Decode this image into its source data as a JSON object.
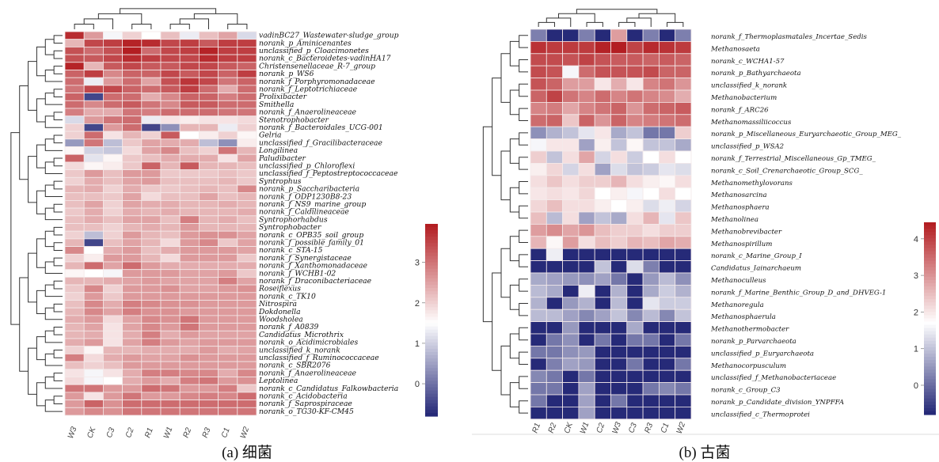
{
  "chart_data": [
    {
      "type": "heatmap",
      "title": "",
      "caption": "(a) 细菌",
      "columns": [
        "W3",
        "CK",
        "C3",
        "C2",
        "R1",
        "W1",
        "R2",
        "R3",
        "C1",
        "W2"
      ],
      "rows": [
        "vadinBC27_Wastewater-sludge_group",
        "norank_p_Aminicenantes",
        "unclassified_p_Cloacimonetes",
        "norank_c_Bacteroidetes-vadinHA17",
        "Christensenellaceae_R-7_group",
        "norank_p_WS6",
        "norank_f_Porphyromonadaceae",
        "norank_f_Leptotrichiaceae",
        "Prolixibacter",
        "Smithella",
        "norank_f_Anaerolineaceae",
        "Stenotrophobacter",
        "norank_f_Bacteroidales_UCG-001",
        "Gelria",
        "unclassified_f_Gracilibacteraceae",
        "Longilinea",
        "Paludibacter",
        "unclassified_p_Chloroflexi",
        "unclassified_f_Peptostreptococcaceae",
        "Syntrophus",
        "norank_p_Saccharibacteria",
        "norank_f_ODP1230B8-23",
        "norank_f_NS9_marine_group",
        "norank_f_Caldilineaceae",
        "Syntrophorhabdus",
        "Syntrophobacter",
        "norank_c_OPB35_soil_group",
        "norank_f_possible_family_01",
        "norank_c_STA-15",
        "norank_f_Synergistaceae",
        "norank_f_Xanthomonadaceae",
        "norank_f_WCHB1-02",
        "norank_f_Draconibacteriaceae",
        "Roseiflexus",
        "norank_c_TK10",
        "Nitrospira",
        "Dokdonella",
        "Woodsholea",
        "norank_f_A0839",
        "Candidatus_Microthrix",
        "norank_o_Acidimicrobiales",
        "unclassified_k_norank",
        "unclassified_f_Ruminococcaceae",
        "norank_c_SBR2076",
        "norank_f_Anaerolineaceae",
        "Leptolinea",
        "norank_c_Candidatus_Falkowbacteria",
        "norank_c_Acidobacteria",
        "norank_f_Saprospiraceae",
        "norank_o_TG30-KF-CM45"
      ],
      "values": [
        [
          3.8,
          2.6,
          1.4,
          2.0,
          1.5,
          2.2,
          1.3,
          2.2,
          2.5,
          1.1
        ],
        [
          2.3,
          3.5,
          3.6,
          3.9,
          3.8,
          3.5,
          3.6,
          3.3,
          3.6,
          3.6
        ],
        [
          3.4,
          3.1,
          3.4,
          4.0,
          3.1,
          3.5,
          3.6,
          3.9,
          3.6,
          3.6
        ],
        [
          3.4,
          3.3,
          3.5,
          3.8,
          3.6,
          3.5,
          3.5,
          3.8,
          3.6,
          3.6
        ],
        [
          3.9,
          2.3,
          3.3,
          3.5,
          3.3,
          3.3,
          3.5,
          3.5,
          3.3,
          3.2
        ],
        [
          3.2,
          3.6,
          2.8,
          3.2,
          3.2,
          3.5,
          3.3,
          3.5,
          3.2,
          3.6
        ],
        [
          3.1,
          1.3,
          2.6,
          3.1,
          2.5,
          3.4,
          3.7,
          3.5,
          3.0,
          3.2
        ],
        [
          3.0,
          3.5,
          3.5,
          3.2,
          3.1,
          3.3,
          3.6,
          3.1,
          2.4,
          3.1
        ],
        [
          3.2,
          -0.5,
          3.1,
          3.1,
          2.4,
          2.8,
          3.2,
          3.2,
          2.9,
          3.1
        ],
        [
          3.1,
          2.8,
          3.1,
          3.3,
          3.0,
          2.8,
          3.3,
          3.3,
          3.1,
          3.1
        ],
        [
          2.9,
          2.4,
          2.4,
          3.0,
          2.9,
          3.1,
          3.1,
          3.1,
          3.0,
          3.0
        ],
        [
          1.1,
          2.6,
          3.0,
          3.1,
          1.3,
          1.8,
          1.7,
          1.8,
          1.8,
          1.9
        ],
        [
          2.0,
          -0.5,
          2.6,
          3.1,
          -0.5,
          0.3,
          2.3,
          2.3,
          1.3,
          2.0
        ],
        [
          2.0,
          3.1,
          1.8,
          2.3,
          2.0,
          3.3,
          1.5,
          1.7,
          2.0,
          1.6
        ],
        [
          0.4,
          3.0,
          0.8,
          2.1,
          2.5,
          2.4,
          2.4,
          0.8,
          0.3,
          1.7
        ],
        [
          1.6,
          1.0,
          0.9,
          1.9,
          2.5,
          2.8,
          2.2,
          2.0,
          3.0,
          2.3
        ],
        [
          3.2,
          1.2,
          1.6,
          2.1,
          2.2,
          2.4,
          2.4,
          2.4,
          1.8,
          2.5
        ],
        [
          1.9,
          1.6,
          1.7,
          2.1,
          3.2,
          2.3,
          3.3,
          2.3,
          2.3,
          2.2
        ],
        [
          2.1,
          2.6,
          2.2,
          2.6,
          2.6,
          2.1,
          2.1,
          2.1,
          2.2,
          2.1
        ],
        [
          2.0,
          2.4,
          2.2,
          2.5,
          2.6,
          2.2,
          2.2,
          2.2,
          2.3,
          2.1
        ],
        [
          2.3,
          2.4,
          2.0,
          2.4,
          2.1,
          2.1,
          2.2,
          2.3,
          2.2,
          2.8
        ],
        [
          2.2,
          2.2,
          2.1,
          2.5,
          1.9,
          2.2,
          2.2,
          2.5,
          2.2,
          2.3
        ],
        [
          2.2,
          2.5,
          2.0,
          2.5,
          2.4,
          2.4,
          2.3,
          2.3,
          2.4,
          2.3
        ],
        [
          2.1,
          2.4,
          2.0,
          2.4,
          2.3,
          2.4,
          2.3,
          2.3,
          2.3,
          2.4
        ],
        [
          2.2,
          2.4,
          2.2,
          2.5,
          2.5,
          2.2,
          2.9,
          2.3,
          2.4,
          2.2
        ],
        [
          2.2,
          2.2,
          2.0,
          2.3,
          2.4,
          2.3,
          2.6,
          2.3,
          2.3,
          2.3
        ],
        [
          2.0,
          0.8,
          2.0,
          2.6,
          2.3,
          2.2,
          2.6,
          2.7,
          2.7,
          2.5
        ],
        [
          2.3,
          -0.5,
          2.2,
          2.5,
          2.3,
          1.9,
          2.6,
          2.8,
          2.1,
          2.5
        ],
        [
          2.8,
          1.5,
          2.4,
          2.6,
          2.2,
          2.4,
          2.6,
          2.6,
          2.6,
          2.5
        ],
        [
          2.0,
          1.7,
          2.6,
          2.6,
          2.3,
          1.9,
          2.6,
          2.6,
          2.6,
          2.1
        ],
        [
          2.3,
          3.1,
          2.5,
          3.1,
          2.6,
          2.4,
          2.4,
          2.4,
          2.4,
          2.4
        ],
        [
          1.6,
          1.5,
          1.4,
          2.6,
          2.6,
          2.6,
          2.5,
          2.5,
          2.6,
          2.1
        ],
        [
          2.3,
          2.3,
          2.4,
          2.5,
          2.6,
          2.5,
          2.5,
          2.5,
          2.9,
          2.5
        ],
        [
          2.1,
          2.8,
          2.0,
          2.6,
          2.6,
          2.7,
          2.5,
          2.5,
          2.6,
          2.7
        ],
        [
          2.0,
          2.6,
          2.1,
          2.6,
          2.6,
          2.6,
          2.6,
          2.6,
          2.6,
          2.6
        ],
        [
          2.2,
          2.8,
          2.4,
          2.9,
          2.8,
          2.7,
          2.7,
          2.6,
          2.6,
          2.6
        ],
        [
          2.3,
          2.8,
          2.5,
          2.9,
          2.7,
          2.7,
          2.6,
          2.6,
          2.6,
          2.6
        ],
        [
          2.4,
          2.6,
          1.9,
          2.5,
          2.8,
          2.7,
          3.0,
          2.6,
          2.6,
          2.6
        ],
        [
          2.3,
          2.5,
          1.8,
          2.5,
          2.8,
          2.6,
          3.0,
          2.6,
          2.6,
          2.6
        ],
        [
          2.3,
          2.4,
          1.8,
          2.4,
          2.9,
          2.4,
          2.6,
          2.5,
          2.5,
          2.5
        ],
        [
          2.4,
          2.6,
          1.8,
          2.5,
          2.9,
          2.6,
          2.5,
          2.6,
          2.6,
          2.6
        ],
        [
          2.0,
          1.6,
          2.3,
          2.3,
          2.4,
          2.4,
          2.4,
          2.6,
          2.4,
          2.5
        ],
        [
          2.9,
          1.9,
          2.4,
          2.6,
          2.5,
          2.5,
          2.7,
          2.6,
          2.6,
          2.6
        ],
        [
          2.2,
          2.0,
          2.2,
          2.6,
          2.6,
          2.6,
          2.6,
          2.6,
          2.6,
          2.6
        ],
        [
          1.8,
          1.4,
          1.8,
          2.4,
          2.9,
          2.9,
          2.8,
          2.8,
          2.4,
          2.8
        ],
        [
          1.9,
          1.4,
          1.5,
          2.4,
          2.6,
          2.4,
          2.9,
          3.0,
          2.6,
          2.7
        ],
        [
          3.0,
          3.0,
          2.6,
          2.6,
          3.1,
          3.0,
          2.6,
          2.6,
          2.9,
          2.1
        ],
        [
          2.6,
          1.8,
          2.6,
          3.0,
          2.6,
          2.6,
          2.8,
          2.9,
          2.8,
          3.1
        ],
        [
          2.6,
          3.2,
          2.7,
          3.1,
          3.1,
          3.1,
          3.1,
          3.1,
          3.1,
          3.1
        ],
        [
          2.6,
          2.8,
          2.7,
          3.0,
          3.0,
          3.0,
          3.0,
          3.0,
          3.0,
          3.0
        ]
      ],
      "colorbar": {
        "ticks": [
          "0",
          "1",
          "2",
          "3"
        ],
        "min": -0.8,
        "max": 3.95,
        "mid": 1.5
      },
      "colors": {
        "low": "#262a78",
        "mid": "#ffffff",
        "high": "#b31e22"
      }
    },
    {
      "type": "heatmap",
      "title": "",
      "caption": "(b) 古菌",
      "columns": [
        "R1",
        "R2",
        "CK",
        "W1",
        "C2",
        "W3",
        "C3",
        "R3",
        "C1",
        "W2"
      ],
      "rows": [
        "norank_f_Thermoplasmatales_Incertae_Sedis",
        "Methanosaeta",
        "norank_c_WCHA1-57",
        "norank_p_Bathyarchaeota",
        "unclassified_k_norank",
        "Methanobacterium",
        "norank_f_ARC26",
        "Methanomassiliicoccus",
        "norank_p_Miscellaneous_Euryarchaeotic_Group_MEG_",
        "unclassified_p_WSA2",
        "norank_f_Terrestrial_Miscellaneous_Gp_TMEG_",
        "norank_c_Soil_Crenarchaeotic_Group_SCG_",
        "Methanomethylovorans",
        "Methanosarcina",
        "Methanosphaera",
        "Methanolinea",
        "Methanobrevibacter",
        "Methanospirillum",
        "norank_c_Marine_Group_I",
        "Candidatus_Iainarchaeum",
        "Methanoculleus",
        "norank_f_Marine_Benthic_Group_D_and_DHVEG-1",
        "Methanoregula",
        "Methanosphaerula",
        "Methanothermobacter",
        "norank_p_Parvarchaeota",
        "unclassified_p_Euryarchaeota",
        "Methanocorpusculum",
        "unclassified_f_Methanobacteriaceae",
        "norank_c_Group_C3",
        "norank_p_Candidate_division_YNPFFA",
        "unclassified_c_Thermoprotei"
      ],
      "values": [
        [
          0.2,
          -0.8,
          -0.8,
          0.2,
          -0.8,
          2.9,
          -0.8,
          0.2,
          -0.8,
          0.2
        ],
        [
          4.2,
          4.1,
          4.1,
          4.1,
          4.4,
          4.5,
          4.0,
          4.3,
          4.2,
          4.1
        ],
        [
          3.9,
          3.9,
          3.8,
          4.0,
          3.8,
          3.7,
          3.7,
          3.6,
          3.7,
          3.6
        ],
        [
          3.9,
          3.8,
          1.6,
          3.5,
          3.8,
          3.8,
          3.8,
          3.9,
          3.6,
          3.6
        ],
        [
          3.8,
          3.6,
          2.9,
          2.9,
          2.0,
          2.7,
          2.0,
          3.2,
          3.4,
          3.0
        ],
        [
          3.6,
          4.0,
          3.4,
          3.2,
          3.5,
          3.2,
          3.4,
          3.2,
          3.1,
          2.7
        ],
        [
          3.2,
          3.3,
          2.8,
          3.2,
          3.4,
          3.6,
          3.0,
          3.5,
          3.6,
          3.7
        ],
        [
          3.5,
          3.6,
          2.4,
          3.6,
          3.0,
          3.6,
          3.2,
          3.3,
          3.4,
          3.5
        ],
        [
          0.4,
          0.8,
          1.0,
          1.4,
          2.0,
          0.7,
          1.0,
          0.1,
          0.1,
          2.3
        ],
        [
          1.6,
          2.0,
          2.0,
          0.6,
          1.9,
          1.0,
          1.8,
          1.0,
          1.0,
          0.7
        ],
        [
          2.3,
          1.0,
          2.1,
          2.8,
          1.2,
          2.1,
          1.1,
          1.7,
          2.1,
          1.7
        ],
        [
          1.9,
          2.2,
          1.2,
          2.1,
          0.6,
          1.3,
          1.0,
          1.1,
          1.4,
          1.3
        ],
        [
          2.1,
          2.4,
          2.1,
          2.3,
          2.3,
          2.6,
          2.1,
          1.9,
          1.8,
          2.1
        ],
        [
          2.0,
          2.1,
          2.0,
          2.2,
          1.7,
          1.9,
          1.6,
          1.7,
          2.1,
          1.7
        ],
        [
          2.2,
          2.5,
          2.1,
          2.1,
          1.9,
          1.7,
          1.9,
          1.3,
          1.5,
          1.2
        ],
        [
          2.5,
          0.9,
          2.1,
          0.6,
          1.0,
          0.7,
          2.1,
          2.6,
          1.4,
          2.4
        ],
        [
          2.9,
          3.1,
          2.8,
          3.0,
          2.5,
          2.3,
          2.3,
          2.1,
          2.3,
          2.3
        ],
        [
          2.6,
          1.8,
          2.9,
          2.1,
          2.5,
          2.3,
          2.6,
          2.5,
          2.8,
          2.7
        ],
        [
          -0.8,
          1.5,
          -0.8,
          -0.8,
          -0.8,
          -0.8,
          -0.8,
          -0.8,
          -0.8,
          -0.8
        ],
        [
          -0.8,
          -0.8,
          -0.8,
          -0.8,
          1.0,
          -0.8,
          1.3,
          0.2,
          -0.8,
          -0.8
        ],
        [
          0.7,
          0.6,
          0.5,
          0.4,
          0.6,
          0.1,
          -0.8,
          0.5,
          0.9,
          0.4
        ],
        [
          0.9,
          0.7,
          -0.8,
          1.5,
          -0.8,
          0.8,
          -0.8,
          0.7,
          1.1,
          0.8
        ],
        [
          0.8,
          -0.8,
          0.5,
          0.8,
          -0.8,
          0.9,
          -0.8,
          1.4,
          1.1,
          1.1
        ],
        [
          0.9,
          0.9,
          0.6,
          0.3,
          0.6,
          1.0,
          0.3,
          0.9,
          0.3,
          1.0
        ],
        [
          -0.8,
          -0.8,
          0.5,
          -0.8,
          -0.8,
          -0.8,
          0.7,
          -0.8,
          -0.8,
          -0.8
        ],
        [
          -0.8,
          0.1,
          0.4,
          -0.8,
          0.1,
          -0.8,
          0.1,
          0.1,
          -0.8,
          0.1
        ],
        [
          0.1,
          0.1,
          0.4,
          0.5,
          -0.8,
          -0.8,
          -0.8,
          -0.8,
          -0.8,
          -0.8
        ],
        [
          -0.8,
          0.2,
          0.6,
          0.5,
          -0.8,
          -0.8,
          0.1,
          -0.8,
          -0.8,
          0.1
        ],
        [
          0.3,
          0.1,
          -0.8,
          0.1,
          -0.8,
          -0.8,
          -0.8,
          -0.8,
          -0.8,
          -0.8
        ],
        [
          0.1,
          0.1,
          -0.8,
          0.6,
          -0.8,
          -0.8,
          -0.8,
          0.1,
          0.3,
          0.1
        ],
        [
          0.1,
          -0.8,
          -0.8,
          0.6,
          -0.8,
          0.1,
          -0.8,
          -0.8,
          -0.8,
          -0.8
        ],
        [
          -0.8,
          -0.8,
          -0.8,
          0.6,
          -0.8,
          -0.8,
          -0.8,
          -0.8,
          -0.8,
          -0.8
        ]
      ],
      "colorbar": {
        "ticks": [
          "0",
          "1",
          "2",
          "3",
          "4"
        ],
        "min": -0.8,
        "max": 4.45,
        "mid": 1.7
      },
      "colors": {
        "low": "#262a78",
        "mid": "#ffffff",
        "high": "#b31e22"
      }
    }
  ]
}
